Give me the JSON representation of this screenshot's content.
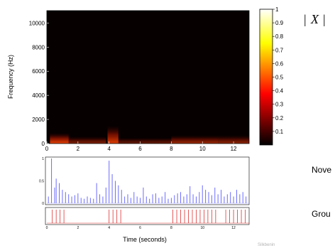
{
  "right_labels": {
    "math_bar_left": "|",
    "math_x": "X",
    "math_bar_right": "|",
    "novelty": "Nove",
    "ground": "Grou",
    "faint_footer": "Silkbenin"
  },
  "chart_data": [
    {
      "type": "heatmap",
      "xlabel": "",
      "ylabel": "Frequency (Hz)",
      "xlim": [
        0,
        13
      ],
      "ylim": [
        0,
        11025
      ],
      "x_ticks": [
        "0",
        "2",
        "4",
        "6",
        "8",
        "10",
        "12"
      ],
      "y_ticks": [
        "0",
        "2000",
        "4000",
        "6000",
        "8000",
        "10000"
      ],
      "colorbar": {
        "range": [
          0,
          1
        ],
        "ticks": [
          "0.1",
          "0.2",
          "0.3",
          "0.4",
          "0.5",
          "0.6",
          "0.7",
          "0.8",
          "0.9",
          "1"
        ]
      },
      "energy_bursts": [
        {
          "t_start": 0.2,
          "t_end": 1.4,
          "f_max": 900,
          "level": 0.32
        },
        {
          "t_start": 1.4,
          "t_end": 3.8,
          "f_max": 600,
          "level": 0.18
        },
        {
          "t_start": 3.9,
          "t_end": 4.6,
          "f_max": 1500,
          "level": 0.3
        },
        {
          "t_start": 4.6,
          "t_end": 8.0,
          "f_max": 500,
          "level": 0.15
        },
        {
          "t_start": 8.0,
          "t_end": 11.0,
          "f_max": 700,
          "level": 0.22
        },
        {
          "t_start": 11.0,
          "t_end": 13.0,
          "f_max": 700,
          "level": 0.2
        }
      ]
    },
    {
      "type": "bar",
      "xlabel": "",
      "ylabel": "",
      "xlim": [
        0,
        13
      ],
      "ylim": [
        0,
        1
      ],
      "y_ticks": [
        "0",
        "0.5",
        "1"
      ],
      "x": [
        0.1,
        0.3,
        0.5,
        0.6,
        0.8,
        1.0,
        1.2,
        1.4,
        1.6,
        1.8,
        2.0,
        2.2,
        2.4,
        2.6,
        2.8,
        3.0,
        3.2,
        3.4,
        3.6,
        3.8,
        4.0,
        4.2,
        4.4,
        4.6,
        4.8,
        5.0,
        5.2,
        5.4,
        5.6,
        5.8,
        6.0,
        6.2,
        6.4,
        6.6,
        6.8,
        7.0,
        7.2,
        7.4,
        7.6,
        7.8,
        8.0,
        8.2,
        8.4,
        8.6,
        8.8,
        9.0,
        9.2,
        9.4,
        9.6,
        9.8,
        10.0,
        10.2,
        10.4,
        10.6,
        10.8,
        11.0,
        11.2,
        11.4,
        11.6,
        11.8,
        12.0,
        12.2,
        12.4,
        12.6,
        12.8
      ],
      "values": [
        0.15,
        1.0,
        0.35,
        0.55,
        0.45,
        0.3,
        0.25,
        0.2,
        0.15,
        0.18,
        0.22,
        0.12,
        0.1,
        0.15,
        0.12,
        0.1,
        0.45,
        0.2,
        0.15,
        0.35,
        0.95,
        0.65,
        0.5,
        0.4,
        0.3,
        0.15,
        0.2,
        0.12,
        0.25,
        0.15,
        0.12,
        0.35,
        0.15,
        0.1,
        0.2,
        0.22,
        0.12,
        0.15,
        0.25,
        0.1,
        0.12,
        0.18,
        0.22,
        0.25,
        0.15,
        0.2,
        0.38,
        0.2,
        0.15,
        0.25,
        0.4,
        0.3,
        0.25,
        0.18,
        0.35,
        0.2,
        0.3,
        0.15,
        0.2,
        0.25,
        0.15,
        0.3,
        0.2,
        0.25,
        0.15
      ]
    },
    {
      "type": "bar",
      "xlabel": "Time (seconds)",
      "ylabel": "",
      "xlim": [
        0,
        13
      ],
      "x_ticks": [
        "0",
        "2",
        "4",
        "6",
        "8",
        "10",
        "12"
      ],
      "onsets": [
        0.35,
        0.6,
        0.85,
        1.1,
        4.0,
        4.25,
        4.5,
        4.75,
        8.1,
        8.35,
        8.6,
        8.85,
        9.1,
        9.35,
        9.6,
        9.85,
        10.1,
        10.35,
        10.6,
        10.85,
        11.5,
        11.75,
        12.0,
        12.25,
        12.5,
        12.75
      ]
    }
  ]
}
